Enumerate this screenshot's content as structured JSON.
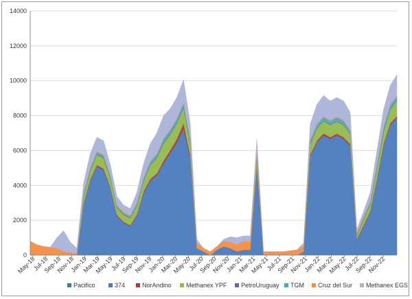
{
  "chart_data": {
    "type": "area",
    "stacked": true,
    "title": "",
    "xlabel": "",
    "ylabel": "",
    "ylim": [
      0,
      14000
    ],
    "yticks": [
      0,
      2000,
      4000,
      6000,
      8000,
      10000,
      12000,
      14000
    ],
    "xticks": [
      "May-18",
      "Jul-18",
      "Sep-18",
      "Nov-18",
      "Jan-19",
      "Mar-19",
      "May-19",
      "Jul-19",
      "Sep-19",
      "Nov-19",
      "Jan-20",
      "Mar-20",
      "May-20",
      "Jul-20",
      "Sep-20",
      "Nov-20",
      "Jan-21",
      "Mar-21",
      "May-21",
      "Jul-21",
      "Sep-21",
      "Nov-21",
      "Jan-22",
      "Mar-22",
      "May-22",
      "Jul-22",
      "Sep-22",
      "Nov-22"
    ],
    "grid": true,
    "legend": "bottom",
    "x": [
      "May-18",
      "Jun-18",
      "Jul-18",
      "Aug-18",
      "Sep-18",
      "Oct-18",
      "Nov-18",
      "Dec-18",
      "Jan-19",
      "Feb-19",
      "Mar-19",
      "Apr-19",
      "May-19",
      "Jun-19",
      "Jul-19",
      "Aug-19",
      "Sep-19",
      "Oct-19",
      "Nov-19",
      "Dec-19",
      "Jan-20",
      "Feb-20",
      "Mar-20",
      "Apr-20",
      "May-20",
      "Jun-20",
      "Jul-20",
      "Aug-20",
      "Sep-20",
      "Oct-20",
      "Nov-20",
      "Dec-20",
      "Jan-21",
      "Feb-21",
      "Mar-21",
      "Apr-21",
      "May-21",
      "Jun-21",
      "Jul-21",
      "Aug-21",
      "Sep-21",
      "Oct-21",
      "Nov-21",
      "Dec-21",
      "Jan-22",
      "Feb-22",
      "Mar-22",
      "Apr-22",
      "May-22",
      "Jun-22",
      "Jul-22",
      "Aug-22",
      "Sep-22",
      "Oct-22",
      "Nov-22",
      "Dec-22"
    ],
    "series": [
      {
        "name": "Pacifico",
        "color": "#3f7f97",
        "values": [
          0,
          0,
          0,
          0,
          0,
          0,
          0,
          0,
          80,
          80,
          80,
          80,
          60,
          60,
          60,
          60,
          60,
          60,
          60,
          60,
          60,
          60,
          60,
          60,
          60,
          0,
          0,
          0,
          0,
          0,
          0,
          0,
          0,
          0,
          60,
          0,
          0,
          0,
          0,
          0,
          0,
          0,
          60,
          60,
          60,
          60,
          60,
          60,
          60,
          60,
          60,
          60,
          60,
          60,
          60,
          60
        ]
      },
      {
        "name": "374",
        "color": "#4b7bbd",
        "values": [
          0,
          0,
          0,
          0,
          0,
          0,
          0,
          0,
          2800,
          4200,
          5000,
          4800,
          3800,
          2200,
          1800,
          1600,
          2200,
          3500,
          4200,
          4500,
          5200,
          5800,
          6400,
          7200,
          5500,
          400,
          200,
          0,
          300,
          500,
          400,
          200,
          300,
          300,
          5000,
          0,
          0,
          0,
          0,
          0,
          0,
          200,
          5600,
          6400,
          6800,
          6600,
          6800,
          6600,
          6200,
          800,
          1600,
          2400,
          4200,
          6200,
          7400,
          7800
        ]
      },
      {
        "name": "NorAndino",
        "color": "#b03b3b",
        "values": [
          0,
          0,
          0,
          0,
          0,
          0,
          0,
          0,
          50,
          50,
          80,
          80,
          60,
          50,
          50,
          50,
          60,
          80,
          100,
          120,
          150,
          150,
          200,
          300,
          150,
          0,
          0,
          0,
          0,
          0,
          0,
          0,
          0,
          0,
          50,
          0,
          0,
          0,
          0,
          0,
          0,
          0,
          80,
          100,
          120,
          100,
          100,
          100,
          100,
          50,
          50,
          50,
          80,
          100,
          100,
          100
        ]
      },
      {
        "name": "Methanex YPF",
        "color": "#94b84b",
        "values": [
          0,
          0,
          0,
          0,
          0,
          0,
          0,
          0,
          400,
          500,
          600,
          600,
          500,
          400,
          400,
          400,
          500,
          600,
          800,
          900,
          1000,
          900,
          900,
          900,
          700,
          0,
          0,
          0,
          0,
          0,
          0,
          0,
          0,
          0,
          500,
          0,
          0,
          0,
          0,
          0,
          0,
          0,
          600,
          700,
          700,
          700,
          700,
          700,
          600,
          200,
          300,
          400,
          600,
          700,
          800,
          900
        ]
      },
      {
        "name": "PetroUruguay",
        "color": "#7d60a0",
        "values": [
          0,
          0,
          0,
          0,
          0,
          0,
          0,
          0,
          30,
          30,
          30,
          30,
          30,
          30,
          30,
          30,
          30,
          30,
          30,
          30,
          40,
          40,
          40,
          40,
          30,
          0,
          0,
          0,
          0,
          0,
          0,
          0,
          0,
          0,
          30,
          0,
          0,
          0,
          0,
          0,
          0,
          0,
          30,
          30,
          30,
          30,
          30,
          30,
          30,
          20,
          20,
          20,
          30,
          30,
          30,
          30
        ]
      },
      {
        "name": "TGM",
        "color": "#46aac4",
        "values": [
          0,
          0,
          0,
          0,
          0,
          0,
          0,
          0,
          100,
          100,
          120,
          120,
          100,
          80,
          80,
          80,
          100,
          120,
          150,
          150,
          200,
          200,
          200,
          200,
          150,
          0,
          0,
          0,
          0,
          0,
          0,
          0,
          0,
          0,
          100,
          0,
          0,
          0,
          0,
          0,
          0,
          0,
          150,
          200,
          200,
          200,
          200,
          200,
          150,
          50,
          80,
          100,
          150,
          200,
          200,
          200
        ]
      },
      {
        "name": "Cruz del Sur",
        "color": "#f38d3f",
        "values": [
          800,
          600,
          500,
          450,
          400,
          200,
          150,
          100,
          50,
          50,
          50,
          50,
          50,
          50,
          50,
          50,
          50,
          50,
          50,
          50,
          50,
          50,
          50,
          50,
          50,
          300,
          200,
          200,
          200,
          300,
          350,
          400,
          500,
          500,
          300,
          200,
          200,
          200,
          200,
          250,
          300,
          300,
          100,
          50,
          50,
          50,
          50,
          50,
          50,
          100,
          100,
          50,
          50,
          50,
          50,
          50
        ]
      },
      {
        "name": "Methanex EGS",
        "color": "#aab3d8",
        "values": [
          0,
          0,
          0,
          0,
          600,
          1200,
          600,
          300,
          600,
          800,
          800,
          800,
          600,
          500,
          400,
          400,
          600,
          800,
          1000,
          1200,
          1300,
          1200,
          1200,
          1300,
          900,
          200,
          0,
          0,
          0,
          100,
          300,
          400,
          300,
          300,
          600,
          0,
          0,
          0,
          0,
          0,
          0,
          200,
          900,
          1100,
          1200,
          1100,
          1100,
          1100,
          1000,
          200,
          300,
          500,
          800,
          1000,
          1100,
          1200
        ]
      }
    ]
  }
}
